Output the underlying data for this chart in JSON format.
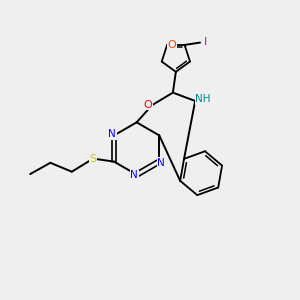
{
  "bg_color": "#efefef",
  "atom_colors": {
    "N": "#0000ff",
    "O": "#ff0000",
    "O_furan": "#ff4400",
    "S": "#cccc00",
    "I": "#cc00cc",
    "C": "#000000",
    "NH": "#008888"
  },
  "bond_color": "#000000",
  "figsize": [
    3.0,
    3.0
  ],
  "dpi": 100
}
